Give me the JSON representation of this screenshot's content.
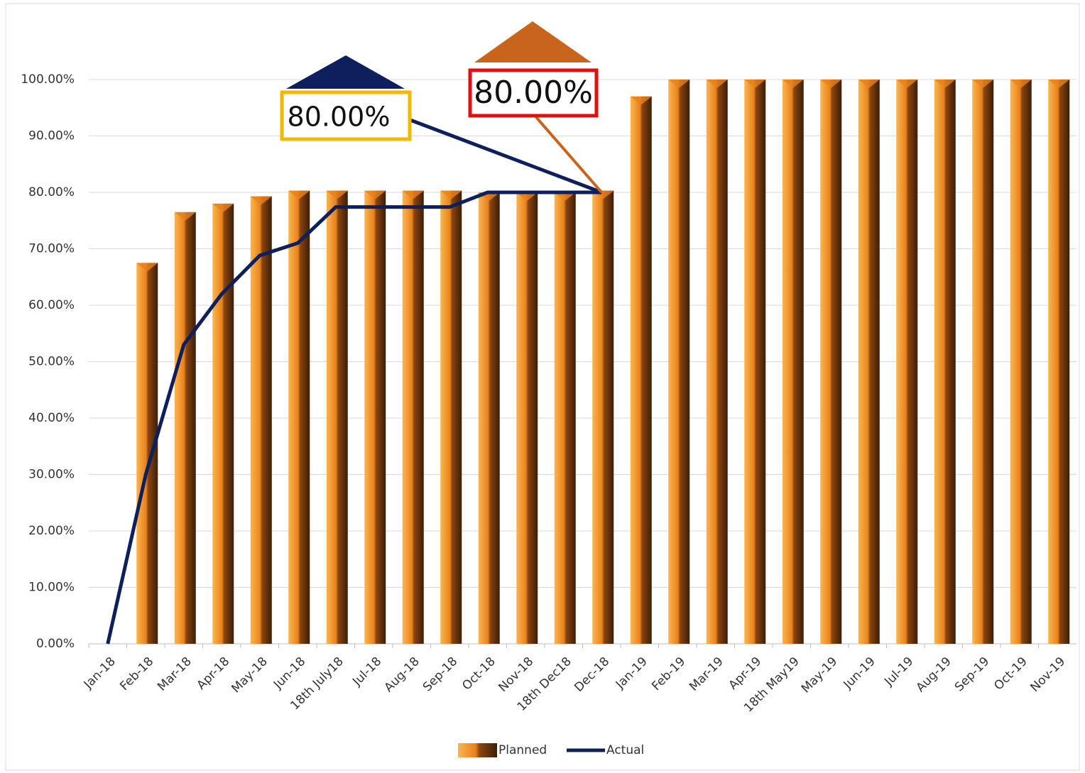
{
  "chart_data": {
    "type": "bar-line",
    "categories": [
      "Jan-18",
      "Feb-18",
      "Mar-18",
      "Apr-18",
      "May-18",
      "Jun-18",
      "18th July18",
      "Jul-18",
      "Aug-18",
      "Sep-18",
      "Oct-18",
      "Nov-18",
      "18th Dec18",
      "Dec-18",
      "Jan-19",
      "Feb-19",
      "Mar-19",
      "Apr-19",
      "18th May19",
      "May-19",
      "Jun-19",
      "Jul-19",
      "Aug-19",
      "Sep-19",
      "Oct-19",
      "Nov-19"
    ],
    "series": [
      {
        "name": "Planned",
        "type": "bar",
        "color": "#e8821a",
        "values": [
          null,
          67.5,
          76.5,
          78,
          79.3,
          80.3,
          80.3,
          80.3,
          80.3,
          80.3,
          80,
          80,
          80,
          80.3,
          97,
          100,
          100,
          100,
          100,
          100,
          100,
          100,
          100,
          100,
          100,
          100
        ]
      },
      {
        "name": "Actual",
        "type": "line",
        "color": "#0d1f5c",
        "values": [
          0,
          30,
          53,
          62,
          68.8,
          71,
          77.4,
          77.4,
          77.4,
          77.4,
          80,
          80,
          80,
          80,
          null,
          null,
          null,
          null,
          null,
          null,
          null,
          null,
          null,
          null,
          null,
          null
        ]
      }
    ],
    "ylim": [
      0,
      100
    ],
    "yticks": [
      {
        "value": 0,
        "label": "0.00%"
      },
      {
        "value": 10,
        "label": "10.00%"
      },
      {
        "value": 20,
        "label": "20.00%"
      },
      {
        "value": 30,
        "label": "30.00%"
      },
      {
        "value": 40,
        "label": "40.00%"
      },
      {
        "value": 50,
        "label": "50.00%"
      },
      {
        "value": 60,
        "label": "60.00%"
      },
      {
        "value": 70,
        "label": "70.00%"
      },
      {
        "value": 80,
        "label": "80.00%"
      },
      {
        "value": 90,
        "label": "90.00%"
      },
      {
        "value": 100,
        "label": "100.00%"
      }
    ],
    "grid": true,
    "legend": "bottom",
    "annotations": [
      {
        "text": "80.00%"
      },
      {
        "text": "80.00%"
      }
    ]
  }
}
